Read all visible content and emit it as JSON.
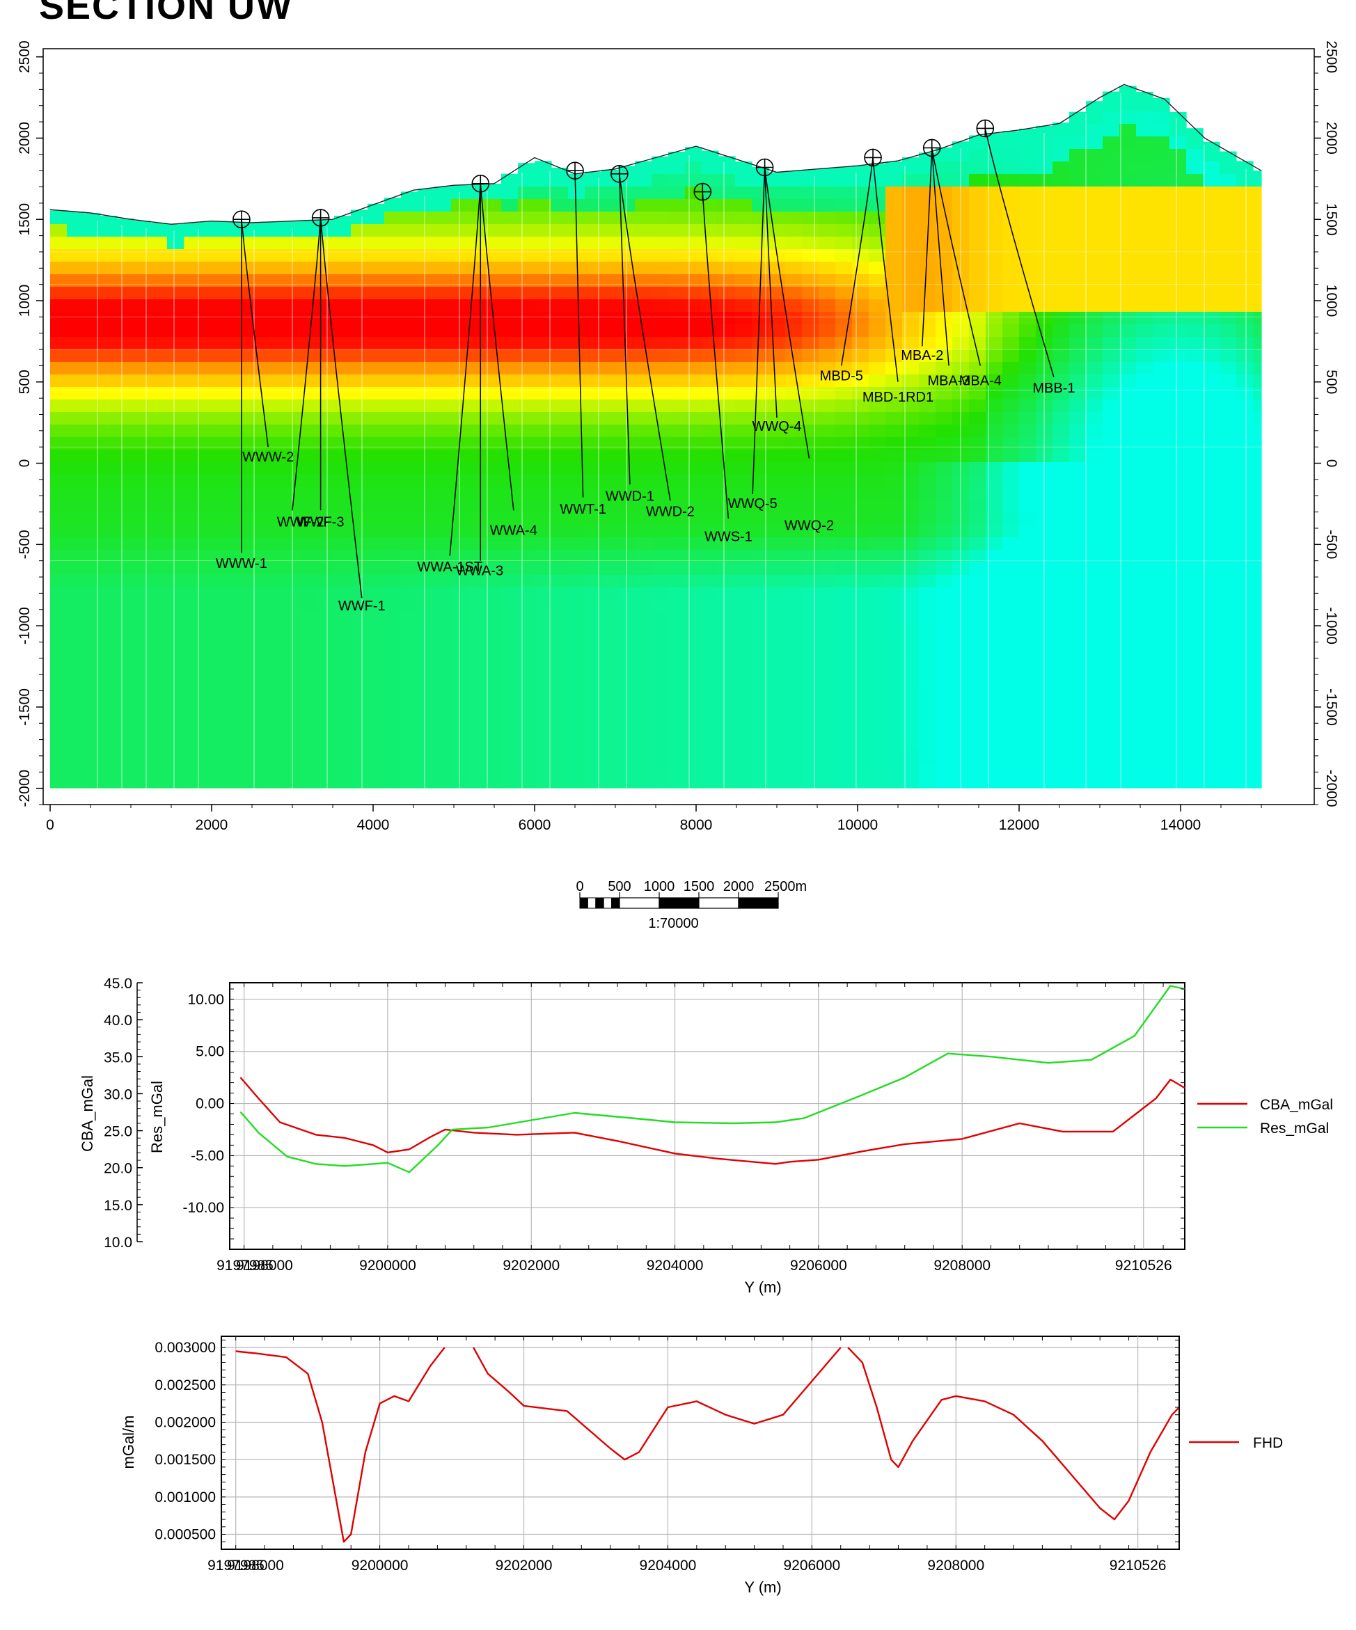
{
  "page": {
    "title": "SECTION UW"
  },
  "scale_bar": {
    "labels": [
      "0",
      "500",
      "1000",
      "1500",
      "2000",
      "2500m"
    ],
    "ratio": "1:70000"
  },
  "colors": {
    "low": "#00ffe6",
    "mid_low": "#22e000",
    "mid": "#ffff00",
    "mid_high": "#ffa000",
    "high": "#ff0000",
    "cba": "#e00000",
    "res": "#22dd22",
    "fhd": "#e00000"
  },
  "chart_data": [
    {
      "type": "heatmap",
      "name": "section",
      "x_ticks": [
        "0",
        "2000",
        "4000",
        "6000",
        "8000",
        "10000",
        "12000",
        "14000"
      ],
      "xlim": [
        0,
        15000
      ],
      "y_ticks": [
        "2500",
        "2000",
        "1500",
        "1000",
        "500",
        "0",
        "-500",
        "-1000",
        "-1500",
        "-2000"
      ],
      "ylim": [
        -2100,
        2550
      ],
      "topography": [
        [
          0,
          1560
        ],
        [
          500,
          1540
        ],
        [
          1000,
          1500
        ],
        [
          1500,
          1470
        ],
        [
          2000,
          1490
        ],
        [
          2500,
          1480
        ],
        [
          3000,
          1490
        ],
        [
          3500,
          1500
        ],
        [
          4000,
          1590
        ],
        [
          4500,
          1680
        ],
        [
          5000,
          1710
        ],
        [
          5500,
          1720
        ],
        [
          6000,
          1880
        ],
        [
          6500,
          1780
        ],
        [
          7000,
          1810
        ],
        [
          7500,
          1880
        ],
        [
          8000,
          1950
        ],
        [
          8500,
          1870
        ],
        [
          9000,
          1790
        ],
        [
          9500,
          1810
        ],
        [
          10000,
          1830
        ],
        [
          10500,
          1860
        ],
        [
          11000,
          1930
        ],
        [
          11500,
          2020
        ],
        [
          12000,
          2050
        ],
        [
          12500,
          2090
        ],
        [
          13000,
          2250
        ],
        [
          13300,
          2330
        ],
        [
          13800,
          2240
        ],
        [
          14300,
          2000
        ],
        [
          15000,
          1800
        ]
      ],
      "wells": [
        {
          "name": "WWW-1",
          "collar": [
            2370,
            1500
          ],
          "bottom": [
            2370,
            -550
          ],
          "label_at": [
            2370,
            -645
          ]
        },
        {
          "name": "WWW-2",
          "collar": [
            2370,
            1500
          ],
          "bottom": [
            2700,
            100
          ],
          "label_at": [
            2700,
            10
          ]
        },
        {
          "name": "WWF-2",
          "collar": [
            3350,
            1510
          ],
          "bottom": [
            3000,
            -290
          ],
          "label_at": [
            3100,
            -390
          ]
        },
        {
          "name": "WWF-3",
          "collar": [
            3350,
            1510
          ],
          "bottom": [
            3350,
            -290
          ],
          "label_at": [
            3350,
            -390
          ]
        },
        {
          "name": "WWF-1",
          "collar": [
            3350,
            1510
          ],
          "bottom": [
            3860,
            -830
          ],
          "label_at": [
            3860,
            -905
          ]
        },
        {
          "name": "WWA-1ST",
          "collar": [
            5330,
            1720
          ],
          "bottom": [
            4950,
            -570
          ],
          "label_at": [
            4950,
            -665
          ]
        },
        {
          "name": "WWA-3",
          "collar": [
            5330,
            1720
          ],
          "bottom": [
            5330,
            -600
          ],
          "label_at": [
            5320,
            -690
          ]
        },
        {
          "name": "WWA-4",
          "collar": [
            5330,
            1720
          ],
          "bottom": [
            5740,
            -290
          ],
          "label_at": [
            5740,
            -440
          ]
        },
        {
          "name": "WWT-1",
          "collar": [
            6500,
            1800
          ],
          "bottom": [
            6600,
            -210
          ],
          "label_at": [
            6600,
            -310
          ]
        },
        {
          "name": "WWD-1",
          "collar": [
            7050,
            1780
          ],
          "bottom": [
            7180,
            -130
          ],
          "label_at": [
            7180,
            -230
          ]
        },
        {
          "name": "WWD-2",
          "collar": [
            7050,
            1780
          ],
          "bottom": [
            7680,
            -230
          ],
          "label_at": [
            7680,
            -325
          ]
        },
        {
          "name": "WWS-1",
          "collar": [
            8080,
            1670
          ],
          "bottom": [
            8400,
            -340
          ],
          "label_at": [
            8400,
            -480
          ]
        },
        {
          "name": "WWQ-5",
          "collar": [
            8850,
            1820
          ],
          "bottom": [
            8700,
            -190
          ],
          "label_at": [
            8700,
            -275
          ]
        },
        {
          "name": "WWQ-4",
          "collar": [
            8850,
            1820
          ],
          "bottom": [
            9000,
            280
          ],
          "label_at": [
            9000,
            200
          ]
        },
        {
          "name": "WWQ-2",
          "collar": [
            8850,
            1820
          ],
          "bottom": [
            9400,
            30
          ],
          "label_at": [
            9400,
            -410
          ]
        },
        {
          "name": "MBD-5",
          "collar": [
            10190,
            1880
          ],
          "bottom": [
            9800,
            600
          ],
          "label_at": [
            9800,
            510
          ]
        },
        {
          "name": "MBD-1RD1",
          "collar": [
            10190,
            1880
          ],
          "bottom": [
            10500,
            500
          ],
          "label_at": [
            10500,
            380
          ]
        },
        {
          "name": "MBA-2",
          "collar": [
            10920,
            1940
          ],
          "bottom": [
            10800,
            720
          ],
          "label_at": [
            10800,
            635
          ]
        },
        {
          "name": "MBA-3",
          "collar": [
            10920,
            1940
          ],
          "bottom": [
            11130,
            600
          ],
          "label_at": [
            11130,
            480
          ]
        },
        {
          "name": "MBA-4",
          "collar": [
            10920,
            1940
          ],
          "bottom": [
            11520,
            600
          ],
          "label_at": [
            11520,
            480
          ]
        },
        {
          "name": "MBB-1",
          "collar": [
            11580,
            2060
          ],
          "bottom": [
            12430,
            530
          ],
          "label_at": [
            12430,
            435
          ]
        }
      ]
    },
    {
      "type": "line",
      "name": "gravity",
      "xlabel": "Y (m)",
      "y_left_label": "CBA_mGal",
      "y_right_label": "Res_mGal",
      "x_ticks": [
        "9197985",
        "9198000",
        "9200000",
        "9202000",
        "9204000",
        "9206000",
        "9208000",
        "9210526"
      ],
      "cba_ticks": [
        "45.0",
        "40.0",
        "35.0",
        "30.0",
        "25.0",
        "20.0",
        "15.0",
        "10.0"
      ],
      "res_ticks": [
        "10.00",
        "5.00",
        "0.00",
        "-5.00",
        "-10.00"
      ],
      "xlim": [
        9197800,
        9211100
      ],
      "res_ylim": [
        -14.0,
        11.6
      ],
      "series": [
        {
          "name": "CBA_mGal",
          "values": [
            [
              9197950,
              2.5
            ],
            [
              9198200,
              0.5
            ],
            [
              9198500,
              -1.8
            ],
            [
              9199000,
              -3.0
            ],
            [
              9199400,
              -3.3
            ],
            [
              9199800,
              -4.0
            ],
            [
              9200000,
              -4.7
            ],
            [
              9200300,
              -4.4
            ],
            [
              9200600,
              -3.2
            ],
            [
              9200800,
              -2.5
            ],
            [
              9201200,
              -2.8
            ],
            [
              9201800,
              -3.0
            ],
            [
              9202600,
              -2.8
            ],
            [
              9203200,
              -3.6
            ],
            [
              9204000,
              -4.8
            ],
            [
              9204600,
              -5.3
            ],
            [
              9205400,
              -5.8
            ],
            [
              9205600,
              -5.6
            ],
            [
              9206000,
              -5.4
            ],
            [
              9206600,
              -4.6
            ],
            [
              9207200,
              -3.9
            ],
            [
              9208000,
              -3.4
            ],
            [
              9208800,
              -1.9
            ],
            [
              9209400,
              -2.7
            ],
            [
              9210100,
              -2.7
            ],
            [
              9210700,
              0.5
            ],
            [
              9210900,
              2.3
            ],
            [
              9211100,
              1.5
            ]
          ]
        },
        {
          "name": "Res_mGal",
          "values": [
            [
              9197950,
              -0.8
            ],
            [
              9198200,
              -2.8
            ],
            [
              9198600,
              -5.1
            ],
            [
              9199000,
              -5.8
            ],
            [
              9199400,
              -6.0
            ],
            [
              9199800,
              -5.8
            ],
            [
              9200000,
              -5.7
            ],
            [
              9200300,
              -6.6
            ],
            [
              9200700,
              -4.0
            ],
            [
              9200900,
              -2.5
            ],
            [
              9201400,
              -2.3
            ],
            [
              9202000,
              -1.6
            ],
            [
              9202600,
              -0.9
            ],
            [
              9203400,
              -1.4
            ],
            [
              9204000,
              -1.8
            ],
            [
              9204800,
              -1.9
            ],
            [
              9205400,
              -1.8
            ],
            [
              9205800,
              -1.4
            ],
            [
              9206600,
              0.8
            ],
            [
              9207200,
              2.5
            ],
            [
              9207800,
              4.8
            ],
            [
              9208400,
              4.5
            ],
            [
              9209200,
              3.9
            ],
            [
              9209800,
              4.2
            ],
            [
              9210400,
              6.5
            ],
            [
              9210900,
              11.3
            ],
            [
              9211100,
              11.0
            ]
          ]
        }
      ],
      "legend": "right"
    },
    {
      "type": "line",
      "name": "fhd",
      "xlabel": "Y (m)",
      "ylabel": "mGal/m",
      "x_ticks": [
        "9197985",
        "9198000",
        "9200000",
        "9202000",
        "9204000",
        "9206000",
        "9208000",
        "9210526"
      ],
      "y_ticks": [
        "0.003000",
        "0.002500",
        "0.002000",
        "0.001500",
        "0.001000",
        "0.000500"
      ],
      "xlim": [
        9197800,
        9211100
      ],
      "ylim": [
        0.0003,
        0.00315
      ],
      "series": [
        {
          "name": "FHD",
          "segments": [
            [
              [
                9198000,
                0.00295
              ],
              [
                9198300,
                0.00292
              ],
              [
                9198700,
                0.00287
              ],
              [
                9199000,
                0.00265
              ],
              [
                9199200,
                0.002
              ],
              [
                9199350,
                0.0012
              ],
              [
                9199500,
                0.0004
              ],
              [
                9199600,
                0.0005
              ],
              [
                9199800,
                0.0016
              ],
              [
                9200000,
                0.00225
              ],
              [
                9200200,
                0.00235
              ],
              [
                9200400,
                0.00228
              ],
              [
                9200700,
                0.00275
              ],
              [
                9200900,
                0.003
              ]
            ],
            [
              [
                9201300,
                0.003
              ],
              [
                9201500,
                0.00265
              ],
              [
                9201800,
                0.0024
              ],
              [
                9202000,
                0.00222
              ],
              [
                9202600,
                0.00215
              ],
              [
                9203200,
                0.00165
              ],
              [
                9203400,
                0.0015
              ],
              [
                9203600,
                0.0016
              ],
              [
                9204000,
                0.0022
              ],
              [
                9204400,
                0.00228
              ],
              [
                9204800,
                0.0021
              ],
              [
                9205200,
                0.00198
              ],
              [
                9205600,
                0.0021
              ],
              [
                9206000,
                0.00255
              ],
              [
                9206400,
                0.003
              ]
            ],
            [
              [
                9206500,
                0.003
              ],
              [
                9206700,
                0.0028
              ],
              [
                9206900,
                0.0022
              ],
              [
                9207100,
                0.0015
              ],
              [
                9207200,
                0.0014
              ],
              [
                9207400,
                0.00175
              ],
              [
                9207800,
                0.0023
              ],
              [
                9208000,
                0.00235
              ],
              [
                9208400,
                0.00228
              ],
              [
                9208800,
                0.0021
              ],
              [
                9209200,
                0.00175
              ],
              [
                9209600,
                0.0013
              ],
              [
                9210000,
                0.00085
              ],
              [
                9210200,
                0.0007
              ],
              [
                9210400,
                0.00095
              ],
              [
                9210700,
                0.0016
              ],
              [
                9211000,
                0.0021
              ],
              [
                9211100,
                0.0022
              ]
            ]
          ]
        }
      ],
      "legend": "right"
    }
  ]
}
